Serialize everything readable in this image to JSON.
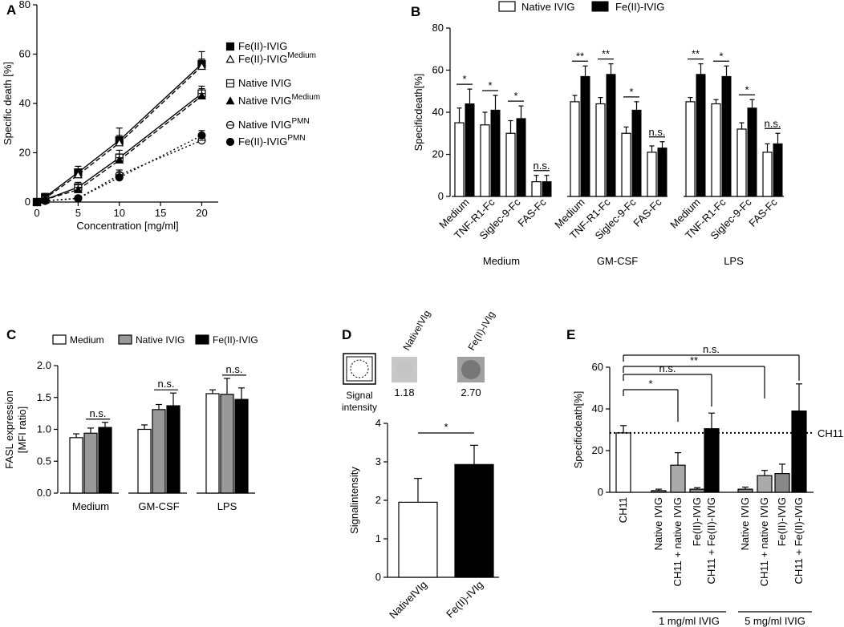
{
  "chart_data": [
    {
      "panel": "A",
      "type": "line",
      "xlabel": "Concentration [mg/ml]",
      "ylabel": "Specific death [%]",
      "xlim": [
        0,
        22
      ],
      "ylim": [
        0,
        80
      ],
      "xticks": [
        0,
        5,
        10,
        15,
        20
      ],
      "yticks": [
        0,
        20,
        40,
        60,
        80
      ],
      "x": [
        0,
        1,
        5,
        10,
        20
      ],
      "series": [
        {
          "name": "Fe(II)-IVIG",
          "values": [
            0,
            2,
            12,
            25,
            56
          ],
          "err": [
            0.5,
            1.5,
            2.5,
            5,
            5
          ],
          "marker": "square-filled",
          "dash": "solid"
        },
        {
          "name": "Fe(II)-IVIG",
          "sup": "Medium",
          "values": [
            0,
            1.5,
            11,
            24,
            55
          ],
          "err": [
            0.5,
            1,
            2,
            3,
            3
          ],
          "marker": "triangle-open",
          "dash": "dashed"
        },
        {
          "name": "Native IVIG",
          "values": [
            0,
            1,
            6,
            18,
            44
          ],
          "err": [
            0.5,
            1,
            2,
            3,
            3
          ],
          "marker": "square-open",
          "dash": "solid"
        },
        {
          "name": "Native IVIG",
          "sup": "Medium",
          "values": [
            0,
            1,
            5,
            17,
            43
          ],
          "err": [
            0.5,
            1,
            2,
            2.5,
            3
          ],
          "marker": "triangle-filled",
          "dash": "dashed"
        },
        {
          "name": "Native IVIG",
          "sup": "PMN",
          "values": [
            0,
            0.5,
            1.5,
            11,
            25
          ],
          "err": [
            0.3,
            0.5,
            1,
            2,
            2
          ],
          "marker": "circle-open",
          "dash": "dotted"
        },
        {
          "name": "Fe(II)-IVIG",
          "sup": "PMN",
          "values": [
            0,
            0.5,
            1.5,
            10,
            27
          ],
          "err": [
            0.3,
            0.5,
            1,
            2,
            2
          ],
          "marker": "circle-filled",
          "dash": "dotted"
        }
      ]
    },
    {
      "panel": "B",
      "type": "bar",
      "ylabel": "Specificdeath[%]",
      "ylim": [
        0,
        80
      ],
      "yticks": [
        0,
        20,
        40,
        60,
        80
      ],
      "legend": [
        "Native IVIG",
        "Fe(II)-IVIG"
      ],
      "groups": [
        {
          "name": "Medium",
          "categories": [
            "Medium",
            "TNF-R1-Fc",
            "Siglec-9-Fc",
            "FAS-Fc"
          ],
          "native": [
            35,
            34,
            30,
            7
          ],
          "native_err": [
            7,
            6,
            6,
            3
          ],
          "fe": [
            44,
            41,
            37,
            7
          ],
          "fe_err": [
            7,
            7,
            6,
            3
          ],
          "sig": [
            "*",
            "*",
            "*",
            "n.s."
          ]
        },
        {
          "name": "GM-CSF",
          "categories": [
            "Medium",
            "TNF-R1-Fc",
            "Siglec-9-Fc",
            "FAS-Fc"
          ],
          "native": [
            45,
            44,
            30,
            21
          ],
          "native_err": [
            3,
            3,
            3,
            3
          ],
          "fe": [
            57,
            58,
            41,
            23
          ],
          "fe_err": [
            5,
            5,
            4,
            3
          ],
          "sig": [
            "**",
            "**",
            "*",
            "n.s."
          ]
        },
        {
          "name": "LPS",
          "categories": [
            "Medium",
            "TNF-R1-Fc",
            "Siglec-9-Fc",
            "FAS-Fc"
          ],
          "native": [
            45,
            44,
            32,
            21
          ],
          "native_err": [
            2,
            2,
            3,
            4
          ],
          "fe": [
            58,
            57,
            42,
            25
          ],
          "fe_err": [
            5,
            5,
            4,
            5
          ],
          "sig": [
            "**",
            "*",
            "*",
            "n.s."
          ]
        }
      ]
    },
    {
      "panel": "C",
      "type": "bar",
      "ylabel": "FASL expression",
      "ylabel2": "[MFI ratio]",
      "ylim": [
        0,
        2.0
      ],
      "yticks": [
        "0.0",
        "0.5",
        "1.0",
        "1.5",
        "2.0"
      ],
      "legend": [
        "Medium",
        "Native IVIG",
        "Fe(II)-IVIG"
      ],
      "categories": [
        "Medium",
        "GM-CSF",
        "LPS"
      ],
      "series": [
        {
          "name": "Medium",
          "values": [
            0.87,
            1.0,
            1.56
          ],
          "err": [
            0.06,
            0.07,
            0.06
          ]
        },
        {
          "name": "Native IVIG",
          "values": [
            0.94,
            1.31,
            1.55
          ],
          "err": [
            0.08,
            0.08,
            0.25
          ]
        },
        {
          "name": "Fe(II)-IVIG",
          "values": [
            1.03,
            1.37,
            1.47
          ],
          "err": [
            0.08,
            0.2,
            0.18
          ]
        }
      ],
      "sig": [
        "n.s.",
        "n.s.",
        "n.s."
      ]
    },
    {
      "panel": "D",
      "type": "bar",
      "ylabel": "Signalintensity",
      "ylim": [
        0,
        4
      ],
      "yticks": [
        0,
        1,
        2,
        3,
        4
      ],
      "categories": [
        "NativeIVIg",
        "Fe(II)-IVIg"
      ],
      "values": [
        1.95,
        2.93
      ],
      "err": [
        0.62,
        0.5
      ],
      "sig": "*",
      "blot": {
        "label": "Signal intensity",
        "lanes": [
          "NativeIVIg",
          "Fe(II)-IVIg"
        ],
        "values": [
          "1.18",
          "2.70"
        ]
      }
    },
    {
      "panel": "E",
      "type": "bar",
      "ylabel": "Specificdeath[%]",
      "ylim": [
        0,
        60
      ],
      "yticks": [
        0,
        20,
        40,
        60
      ],
      "categories": [
        "CH11",
        "Native IVIG",
        "CH11 + native IVIG",
        "Fe(II)-IVIG",
        "CH11 + Fe(II)-IVIG",
        "Native IVIG",
        "CH11 + native IVIG",
        "Fe(II)-IVIG",
        "CH11 + Fe(II)-IVIG"
      ],
      "values": [
        28.5,
        0.8,
        13,
        1.5,
        30.5,
        1.5,
        8,
        9,
        39
      ],
      "err": [
        3.5,
        0.7,
        6,
        0.7,
        7.5,
        1,
        2.5,
        4.5,
        13
      ],
      "colors": [
        "#ffffff",
        "#888888",
        "#aaaaaa",
        "#888888",
        "#000000",
        "#888888",
        "#aaaaaa",
        "#888888",
        "#000000"
      ],
      "reference": {
        "label": "CH11",
        "value": 28.5
      },
      "group_labels": [
        "1 mg/ml IVIG",
        "5 mg/ml IVIG"
      ],
      "comparisons": [
        {
          "to": 2,
          "label": "*"
        },
        {
          "to": 4,
          "label": "n.s."
        },
        {
          "to": 6,
          "label": "**"
        },
        {
          "to": 8,
          "label": "n.s."
        }
      ]
    }
  ]
}
